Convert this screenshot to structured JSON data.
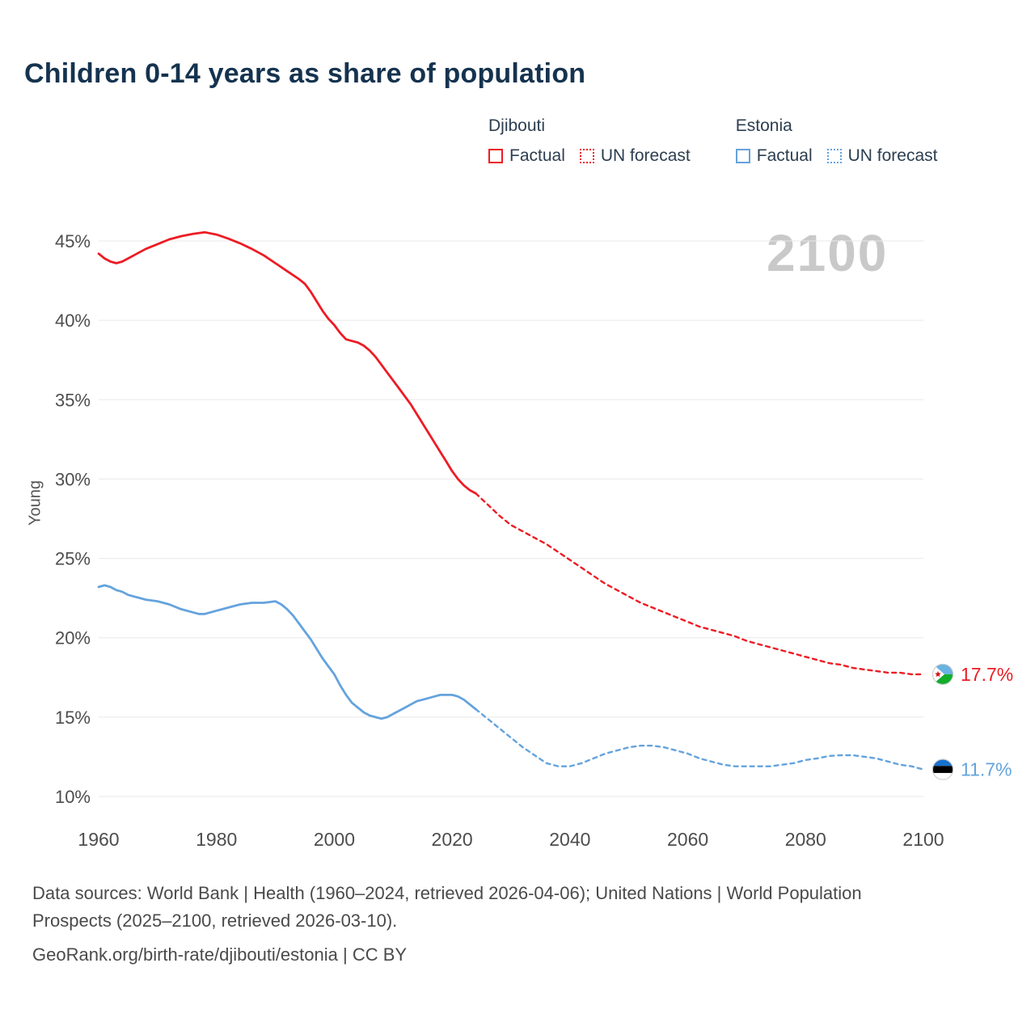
{
  "title": "Children 0-14 years as share of population",
  "watermark": "2100",
  "legend": {
    "groups": [
      {
        "country": "Djibouti",
        "color": "#ed1c24",
        "items": [
          {
            "label": "Factual",
            "style": "solid"
          },
          {
            "label": "UN forecast",
            "style": "dotted"
          }
        ]
      },
      {
        "country": "Estonia",
        "color": "#64a3dd",
        "items": [
          {
            "label": "Factual",
            "style": "solid"
          },
          {
            "label": "UN forecast",
            "style": "dotted"
          }
        ]
      }
    ]
  },
  "chart_data": {
    "type": "line",
    "title": "Children 0-14 years as share of population",
    "xlabel": "",
    "ylabel": "Young",
    "xlim": [
      1960,
      2100
    ],
    "ylim": [
      10,
      45
    ],
    "grid": true,
    "legend_position": "top-right",
    "x_ticks": [
      1960,
      1980,
      2000,
      2020,
      2040,
      2060,
      2080,
      2100
    ],
    "y_ticks": [
      10,
      15,
      20,
      25,
      30,
      35,
      40,
      45
    ],
    "y_tick_suffix": "%",
    "series": [
      {
        "id": "djibouti-factual",
        "name": "Djibouti Factual",
        "color": "#ed1c24",
        "dashed": false,
        "points": [
          [
            1960,
            44.2
          ],
          [
            1961,
            43.9
          ],
          [
            1962,
            43.7
          ],
          [
            1963,
            43.6
          ],
          [
            1964,
            43.7
          ],
          [
            1965,
            43.9
          ],
          [
            1966,
            44.1
          ],
          [
            1968,
            44.5
          ],
          [
            1970,
            44.8
          ],
          [
            1972,
            45.1
          ],
          [
            1974,
            45.3
          ],
          [
            1976,
            45.45
          ],
          [
            1978,
            45.55
          ],
          [
            1980,
            45.4
          ],
          [
            1982,
            45.15
          ],
          [
            1984,
            44.85
          ],
          [
            1986,
            44.5
          ],
          [
            1988,
            44.1
          ],
          [
            1990,
            43.6
          ],
          [
            1992,
            43.1
          ],
          [
            1994,
            42.6
          ],
          [
            1995,
            42.3
          ],
          [
            1996,
            41.8
          ],
          [
            1997,
            41.2
          ],
          [
            1998,
            40.6
          ],
          [
            1999,
            40.1
          ],
          [
            2000,
            39.7
          ],
          [
            2001,
            39.2
          ],
          [
            2002,
            38.8
          ],
          [
            2003,
            38.7
          ],
          [
            2004,
            38.6
          ],
          [
            2005,
            38.4
          ],
          [
            2006,
            38.1
          ],
          [
            2007,
            37.7
          ],
          [
            2008,
            37.2
          ],
          [
            2009,
            36.7
          ],
          [
            2010,
            36.2
          ],
          [
            2011,
            35.7
          ],
          [
            2012,
            35.2
          ],
          [
            2013,
            34.7
          ],
          [
            2014,
            34.1
          ],
          [
            2015,
            33.5
          ],
          [
            2016,
            32.9
          ],
          [
            2017,
            32.3
          ],
          [
            2018,
            31.7
          ],
          [
            2019,
            31.1
          ],
          [
            2020,
            30.5
          ],
          [
            2021,
            30.0
          ],
          [
            2022,
            29.6
          ],
          [
            2023,
            29.3
          ],
          [
            2024,
            29.1
          ]
        ]
      },
      {
        "id": "djibouti-forecast",
        "name": "Djibouti UN forecast",
        "color": "#ed1c24",
        "dashed": true,
        "points": [
          [
            2024,
            29.1
          ],
          [
            2026,
            28.4
          ],
          [
            2028,
            27.7
          ],
          [
            2030,
            27.1
          ],
          [
            2032,
            26.7
          ],
          [
            2034,
            26.3
          ],
          [
            2036,
            25.9
          ],
          [
            2038,
            25.4
          ],
          [
            2040,
            24.9
          ],
          [
            2042,
            24.4
          ],
          [
            2044,
            23.9
          ],
          [
            2046,
            23.4
          ],
          [
            2048,
            23.0
          ],
          [
            2050,
            22.6
          ],
          [
            2052,
            22.2
          ],
          [
            2054,
            21.9
          ],
          [
            2056,
            21.6
          ],
          [
            2058,
            21.3
          ],
          [
            2060,
            21.0
          ],
          [
            2062,
            20.7
          ],
          [
            2064,
            20.5
          ],
          [
            2066,
            20.3
          ],
          [
            2068,
            20.1
          ],
          [
            2070,
            19.8
          ],
          [
            2072,
            19.6
          ],
          [
            2074,
            19.4
          ],
          [
            2076,
            19.2
          ],
          [
            2078,
            19.0
          ],
          [
            2080,
            18.8
          ],
          [
            2082,
            18.6
          ],
          [
            2084,
            18.4
          ],
          [
            2086,
            18.3
          ],
          [
            2088,
            18.1
          ],
          [
            2090,
            18.0
          ],
          [
            2092,
            17.9
          ],
          [
            2094,
            17.8
          ],
          [
            2096,
            17.8
          ],
          [
            2098,
            17.7
          ],
          [
            2100,
            17.7
          ]
        ]
      },
      {
        "id": "estonia-factual",
        "name": "Estonia Factual",
        "color": "#64a3dd",
        "dashed": false,
        "points": [
          [
            1960,
            23.2
          ],
          [
            1961,
            23.3
          ],
          [
            1962,
            23.2
          ],
          [
            1963,
            23.0
          ],
          [
            1964,
            22.9
          ],
          [
            1965,
            22.7
          ],
          [
            1966,
            22.6
          ],
          [
            1967,
            22.5
          ],
          [
            1968,
            22.4
          ],
          [
            1970,
            22.3
          ],
          [
            1972,
            22.1
          ],
          [
            1974,
            21.8
          ],
          [
            1976,
            21.6
          ],
          [
            1977,
            21.5
          ],
          [
            1978,
            21.5
          ],
          [
            1979,
            21.6
          ],
          [
            1980,
            21.7
          ],
          [
            1982,
            21.9
          ],
          [
            1984,
            22.1
          ],
          [
            1986,
            22.2
          ],
          [
            1988,
            22.2
          ],
          [
            1990,
            22.3
          ],
          [
            1991,
            22.1
          ],
          [
            1992,
            21.8
          ],
          [
            1993,
            21.4
          ],
          [
            1994,
            20.9
          ],
          [
            1995,
            20.4
          ],
          [
            1996,
            19.9
          ],
          [
            1997,
            19.3
          ],
          [
            1998,
            18.7
          ],
          [
            1999,
            18.2
          ],
          [
            2000,
            17.7
          ],
          [
            2001,
            17.0
          ],
          [
            2002,
            16.4
          ],
          [
            2003,
            15.9
          ],
          [
            2004,
            15.6
          ],
          [
            2005,
            15.3
          ],
          [
            2006,
            15.1
          ],
          [
            2007,
            15.0
          ],
          [
            2008,
            14.9
          ],
          [
            2009,
            15.0
          ],
          [
            2010,
            15.2
          ],
          [
            2011,
            15.4
          ],
          [
            2012,
            15.6
          ],
          [
            2013,
            15.8
          ],
          [
            2014,
            16.0
          ],
          [
            2015,
            16.1
          ],
          [
            2016,
            16.2
          ],
          [
            2017,
            16.3
          ],
          [
            2018,
            16.4
          ],
          [
            2019,
            16.4
          ],
          [
            2020,
            16.4
          ],
          [
            2021,
            16.3
          ],
          [
            2022,
            16.1
          ],
          [
            2023,
            15.8
          ],
          [
            2024,
            15.5
          ]
        ]
      },
      {
        "id": "estonia-forecast",
        "name": "Estonia UN forecast",
        "color": "#64a3dd",
        "dashed": true,
        "points": [
          [
            2024,
            15.5
          ],
          [
            2026,
            14.9
          ],
          [
            2028,
            14.3
          ],
          [
            2030,
            13.7
          ],
          [
            2032,
            13.1
          ],
          [
            2034,
            12.6
          ],
          [
            2036,
            12.1
          ],
          [
            2038,
            11.9
          ],
          [
            2040,
            11.9
          ],
          [
            2042,
            12.1
          ],
          [
            2044,
            12.4
          ],
          [
            2046,
            12.7
          ],
          [
            2048,
            12.9
          ],
          [
            2050,
            13.1
          ],
          [
            2052,
            13.2
          ],
          [
            2054,
            13.2
          ],
          [
            2056,
            13.1
          ],
          [
            2058,
            12.9
          ],
          [
            2060,
            12.7
          ],
          [
            2062,
            12.4
          ],
          [
            2064,
            12.2
          ],
          [
            2066,
            12.0
          ],
          [
            2068,
            11.9
          ],
          [
            2070,
            11.9
          ],
          [
            2072,
            11.9
          ],
          [
            2074,
            11.9
          ],
          [
            2076,
            12.0
          ],
          [
            2078,
            12.1
          ],
          [
            2080,
            12.3
          ],
          [
            2082,
            12.4
          ],
          [
            2084,
            12.55
          ],
          [
            2086,
            12.6
          ],
          [
            2088,
            12.6
          ],
          [
            2090,
            12.5
          ],
          [
            2092,
            12.4
          ],
          [
            2094,
            12.2
          ],
          [
            2096,
            12.0
          ],
          [
            2098,
            11.9
          ],
          [
            2100,
            11.7
          ]
        ]
      }
    ],
    "end_labels": [
      {
        "series": "Djibouti",
        "label": "17.7%",
        "value": 17.7,
        "year": 2100,
        "color": "#ed1c24",
        "flag": "djibouti"
      },
      {
        "series": "Estonia",
        "label": "11.7%",
        "value": 11.7,
        "year": 2100,
        "color": "#64a3dd",
        "flag": "estonia"
      }
    ]
  },
  "footer": {
    "sources": "Data sources: World Bank | Health (1960–2024, retrieved 2026-04-06); United Nations | World Population Prospects (2025–2100, retrieved 2026-03-10).",
    "attribution": "GeoRank.org/birth-rate/djibouti/estonia | CC BY"
  }
}
